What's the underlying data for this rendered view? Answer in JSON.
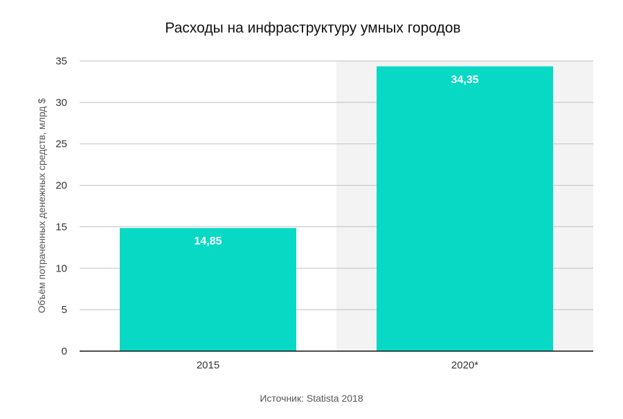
{
  "chart_data": {
    "type": "bar",
    "title": "Расходы на инфраструктуру умных городов",
    "xlabel": "",
    "ylabel": "Объём потраченных денежных средств, млрд $",
    "categories": [
      "2015",
      "2020*"
    ],
    "values": [
      14.85,
      34.35
    ],
    "data_labels": [
      "14,85",
      "34,35"
    ],
    "ylim": [
      0,
      35
    ],
    "yticks": [
      0,
      5,
      10,
      15,
      20,
      25,
      30,
      35
    ],
    "ytick_labels": [
      "0",
      "5",
      "10",
      "15",
      "20",
      "25",
      "30",
      "35"
    ],
    "grid": true,
    "highlighted_category": "2020*",
    "bar_color": "#08d9c5",
    "highlight_band_color": "#f3f3f3",
    "source": "Источник: Statista 2018"
  }
}
